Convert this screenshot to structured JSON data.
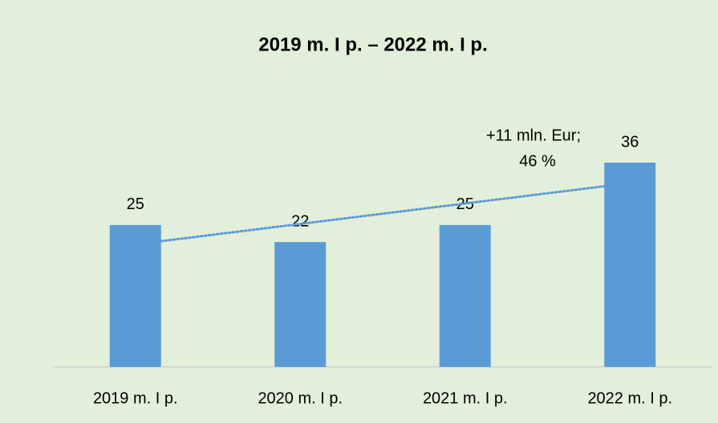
{
  "chart_data": {
    "type": "bar",
    "title": "2019 m. I p. – 2022 m. I p.",
    "categories": [
      "2019 m. I p.",
      "2020 m. I p.",
      "2021 m. I p.",
      "2022 m. I p."
    ],
    "values": [
      25,
      22,
      25,
      36
    ],
    "color": "#5b9bd5",
    "trendline": true,
    "annotations": [
      "+11 mln. Eur;",
      "46 %"
    ]
  }
}
